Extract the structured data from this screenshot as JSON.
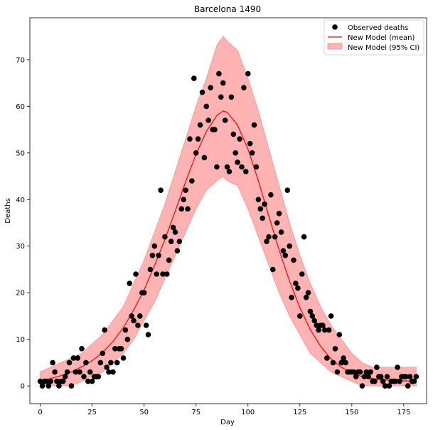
{
  "chart_data": {
    "type": "line",
    "title": "Barcelona 1490",
    "xlabel": "Day",
    "ylabel": "Deaths",
    "xlim": [
      -5,
      186
    ],
    "ylim": [
      -3.8,
      79
    ],
    "xticks": [
      0,
      25,
      50,
      75,
      100,
      125,
      150,
      175
    ],
    "yticks": [
      0,
      10,
      20,
      30,
      40,
      50,
      60,
      70
    ],
    "grid": false,
    "legend_position": "top-right",
    "legend": [
      "Observed deaths",
      "New Model (mean)",
      "New Model (95% CI)"
    ],
    "colors": {
      "observed": "#000000",
      "mean": "#ff0000",
      "ci_fill": "#ffb3b3",
      "ci_edge": "#ff8c8c"
    },
    "series": [
      {
        "name": "Observed deaths",
        "kind": "scatter",
        "points": [
          [
            0,
            1
          ],
          [
            1,
            0
          ],
          [
            2,
            1
          ],
          [
            3,
            1
          ],
          [
            4,
            0
          ],
          [
            5,
            1
          ],
          [
            6,
            5
          ],
          [
            7,
            3
          ],
          [
            8,
            1
          ],
          [
            9,
            0
          ],
          [
            10,
            1
          ],
          [
            11,
            1
          ],
          [
            12,
            2
          ],
          [
            13,
            3
          ],
          [
            14,
            5
          ],
          [
            15,
            0
          ],
          [
            16,
            6
          ],
          [
            17,
            3
          ],
          [
            18,
            6
          ],
          [
            19,
            3
          ],
          [
            20,
            8
          ],
          [
            21,
            2
          ],
          [
            22,
            5
          ],
          [
            23,
            1
          ],
          [
            24,
            3
          ],
          [
            25,
            1
          ],
          [
            26,
            2
          ],
          [
            27,
            2
          ],
          [
            28,
            2
          ],
          [
            29,
            5
          ],
          [
            30,
            7
          ],
          [
            31,
            12
          ],
          [
            32,
            4
          ],
          [
            33,
            3
          ],
          [
            34,
            5
          ],
          [
            35,
            3
          ],
          [
            36,
            8
          ],
          [
            37,
            5
          ],
          [
            38,
            8
          ],
          [
            39,
            8
          ],
          [
            40,
            6
          ],
          [
            41,
            12
          ],
          [
            42,
            10
          ],
          [
            43,
            22
          ],
          [
            44,
            15
          ],
          [
            45,
            14
          ],
          [
            46,
            24
          ],
          [
            47,
            13
          ],
          [
            48,
            15
          ],
          [
            49,
            20
          ],
          [
            50,
            20
          ],
          [
            51,
            13
          ],
          [
            52,
            11
          ],
          [
            53,
            25
          ],
          [
            54,
            28
          ],
          [
            55,
            30
          ],
          [
            56,
            24
          ],
          [
            57,
            28
          ],
          [
            58,
            42
          ],
          [
            59,
            24
          ],
          [
            60,
            32
          ],
          [
            61,
            24
          ],
          [
            62,
            27
          ],
          [
            63,
            31
          ],
          [
            64,
            34
          ],
          [
            65,
            33
          ],
          [
            66,
            29
          ],
          [
            67,
            31
          ],
          [
            68,
            38
          ],
          [
            69,
            40
          ],
          [
            70,
            42
          ],
          [
            71,
            38
          ],
          [
            72,
            53
          ],
          [
            73,
            44
          ],
          [
            74,
            66
          ],
          [
            75,
            50
          ],
          [
            76,
            53
          ],
          [
            77,
            56
          ],
          [
            78,
            63
          ],
          [
            79,
            49
          ],
          [
            80,
            60
          ],
          [
            81,
            57
          ],
          [
            82,
            64
          ],
          [
            83,
            55
          ],
          [
            84,
            55
          ],
          [
            85,
            47
          ],
          [
            86,
            67
          ],
          [
            87,
            62
          ],
          [
            88,
            65
          ],
          [
            89,
            57
          ],
          [
            90,
            47
          ],
          [
            91,
            46
          ],
          [
            92,
            62
          ],
          [
            93,
            54
          ],
          [
            94,
            50
          ],
          [
            95,
            48
          ],
          [
            96,
            53
          ],
          [
            97,
            47
          ],
          [
            98,
            64
          ],
          [
            99,
            46
          ],
          [
            100,
            67
          ],
          [
            101,
            52
          ],
          [
            102,
            50
          ],
          [
            103,
            56
          ],
          [
            104,
            47
          ],
          [
            105,
            40
          ],
          [
            106,
            38
          ],
          [
            107,
            36
          ],
          [
            108,
            39
          ],
          [
            109,
            31
          ],
          [
            110,
            32
          ],
          [
            111,
            41
          ],
          [
            112,
            25
          ],
          [
            113,
            32
          ],
          [
            114,
            35
          ],
          [
            115,
            37
          ],
          [
            116,
            33
          ],
          [
            117,
            29
          ],
          [
            118,
            28
          ],
          [
            119,
            42
          ],
          [
            120,
            30
          ],
          [
            121,
            19
          ],
          [
            122,
            27
          ],
          [
            123,
            22
          ],
          [
            124,
            21
          ],
          [
            125,
            15
          ],
          [
            126,
            24
          ],
          [
            127,
            32
          ],
          [
            128,
            19
          ],
          [
            129,
            20
          ],
          [
            130,
            16
          ],
          [
            131,
            15
          ],
          [
            132,
            14
          ],
          [
            133,
            13
          ],
          [
            134,
            12
          ],
          [
            135,
            13
          ],
          [
            136,
            13
          ],
          [
            137,
            12
          ],
          [
            138,
            6
          ],
          [
            139,
            12
          ],
          [
            140,
            15
          ],
          [
            141,
            5
          ],
          [
            142,
            8
          ],
          [
            143,
            3
          ],
          [
            144,
            11
          ],
          [
            145,
            5
          ],
          [
            146,
            6
          ],
          [
            147,
            5
          ],
          [
            148,
            3
          ],
          [
            149,
            3
          ],
          [
            150,
            3
          ],
          [
            151,
            3
          ],
          [
            152,
            2
          ],
          [
            153,
            3
          ],
          [
            154,
            3
          ],
          [
            155,
            0
          ],
          [
            156,
            2
          ],
          [
            157,
            3
          ],
          [
            158,
            2
          ],
          [
            159,
            3
          ],
          [
            160,
            1
          ],
          [
            161,
            1
          ],
          [
            162,
            4
          ],
          [
            163,
            2
          ],
          [
            164,
            2
          ],
          [
            165,
            1
          ],
          [
            166,
            0
          ],
          [
            167,
            2
          ],
          [
            168,
            0
          ],
          [
            169,
            1
          ],
          [
            170,
            1
          ],
          [
            171,
            1
          ],
          [
            172,
            4
          ],
          [
            173,
            1
          ],
          [
            174,
            2
          ],
          [
            175,
            2
          ],
          [
            176,
            2
          ],
          [
            177,
            0
          ],
          [
            178,
            2
          ],
          [
            179,
            1
          ],
          [
            180,
            1
          ],
          [
            181,
            2
          ]
        ]
      },
      {
        "name": "New Model (mean)",
        "kind": "line",
        "points": [
          [
            0,
            1.0
          ],
          [
            5,
            1.6
          ],
          [
            10,
            2.2
          ],
          [
            15,
            3.0
          ],
          [
            20,
            4.1
          ],
          [
            25,
            5.4
          ],
          [
            30,
            7.2
          ],
          [
            35,
            9.5
          ],
          [
            40,
            12.5
          ],
          [
            45,
            16.3
          ],
          [
            50,
            20.6
          ],
          [
            55,
            25.8
          ],
          [
            60,
            31.4
          ],
          [
            65,
            37.5
          ],
          [
            70,
            43.8
          ],
          [
            75,
            49.7
          ],
          [
            80,
            54.6
          ],
          [
            85,
            58.0
          ],
          [
            88,
            59.0
          ],
          [
            90,
            58.7
          ],
          [
            95,
            56.0
          ],
          [
            100,
            50.8
          ],
          [
            105,
            44.0
          ],
          [
            110,
            36.5
          ],
          [
            115,
            29.2
          ],
          [
            120,
            22.5
          ],
          [
            125,
            16.8
          ],
          [
            130,
            12.1
          ],
          [
            135,
            8.5
          ],
          [
            140,
            5.8
          ],
          [
            145,
            4.0
          ],
          [
            150,
            2.8
          ],
          [
            155,
            2.0
          ],
          [
            160,
            1.6
          ],
          [
            165,
            1.3
          ],
          [
            170,
            1.2
          ],
          [
            175,
            1.1
          ],
          [
            181,
            1.0
          ]
        ]
      },
      {
        "name": "New Model (95% CI)",
        "kind": "band",
        "points": [
          [
            0,
            0,
            3
          ],
          [
            5,
            0,
            4
          ],
          [
            10,
            0,
            5
          ],
          [
            15,
            0,
            6
          ],
          [
            20,
            1,
            7
          ],
          [
            25,
            2,
            9
          ],
          [
            30,
            3,
            11
          ],
          [
            35,
            5,
            14
          ],
          [
            40,
            7,
            17
          ],
          [
            45,
            10,
            22
          ],
          [
            50,
            14,
            27
          ],
          [
            55,
            18,
            33
          ],
          [
            60,
            23,
            39
          ],
          [
            65,
            28,
            46
          ],
          [
            70,
            33,
            53
          ],
          [
            75,
            38,
            60
          ],
          [
            80,
            42,
            66
          ],
          [
            85,
            44,
            73
          ],
          [
            88,
            45,
            75
          ],
          [
            90,
            44,
            74
          ],
          [
            95,
            43,
            72
          ],
          [
            100,
            38,
            66
          ],
          [
            105,
            32,
            59
          ],
          [
            110,
            26,
            51
          ],
          [
            115,
            20,
            43
          ],
          [
            120,
            15,
            35
          ],
          [
            125,
            11,
            28
          ],
          [
            130,
            7,
            22
          ],
          [
            135,
            5,
            17
          ],
          [
            140,
            3,
            13
          ],
          [
            145,
            2,
            10
          ],
          [
            150,
            1,
            7
          ],
          [
            155,
            0,
            5
          ],
          [
            160,
            0,
            4
          ],
          [
            165,
            0,
            4
          ],
          [
            170,
            0,
            4
          ],
          [
            175,
            0,
            4
          ],
          [
            181,
            0,
            4
          ]
        ]
      }
    ]
  }
}
